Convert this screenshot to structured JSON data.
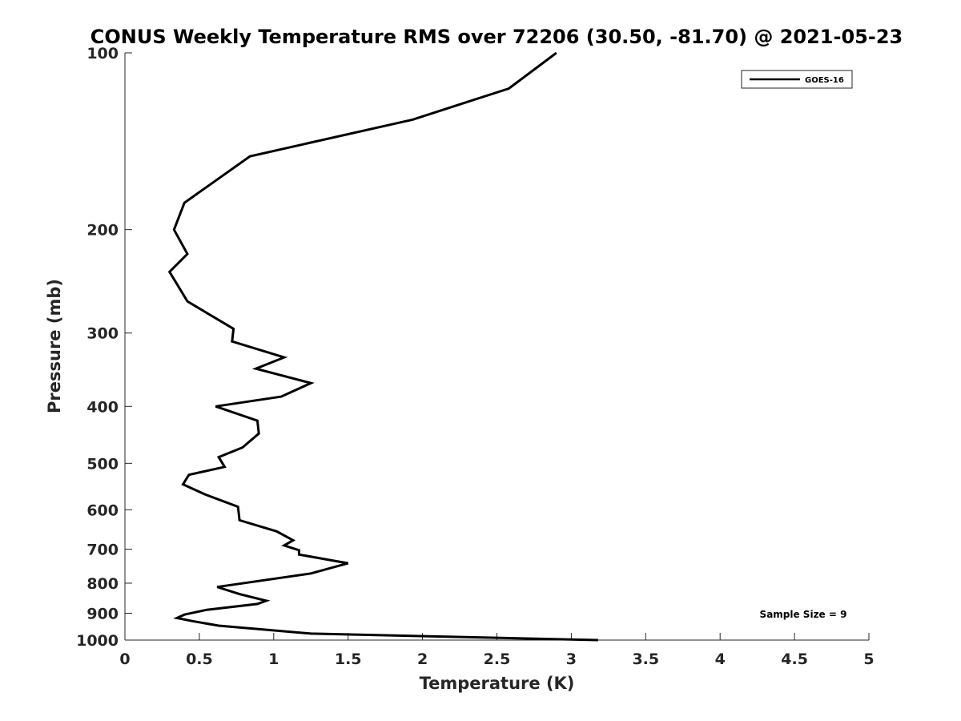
{
  "chart_data": {
    "type": "line",
    "title": "CONUS Weekly Temperature RMS over 72206 (30.50, -81.70) @ 2021-05-23",
    "xlabel": "Temperature (K)",
    "ylabel": "Pressure (mb)",
    "xlim": [
      0,
      5
    ],
    "ylim": [
      100,
      1000
    ],
    "yscale": "log",
    "yreversed": true,
    "grid": false,
    "legend_position": "top-right",
    "xticks": [
      "0",
      "0.5",
      "1",
      "1.5",
      "2",
      "2.5",
      "3",
      "3.5",
      "4",
      "4.5",
      "5"
    ],
    "yticks": [
      "100",
      "200",
      "300",
      "400",
      "500",
      "600",
      "700",
      "800",
      "900",
      "1000"
    ],
    "series": [
      {
        "name": "GOES-16",
        "color": "#000000",
        "x": [
          2.9,
          2.58,
          1.93,
          0.84,
          0.4,
          0.33,
          0.42,
          0.3,
          0.42,
          0.73,
          0.72,
          1.07,
          0.88,
          1.25,
          1.05,
          0.61,
          0.89,
          0.9,
          0.79,
          0.63,
          0.67,
          0.43,
          0.39,
          0.54,
          0.76,
          0.77,
          1.02,
          1.13,
          1.07,
          1.17,
          1.17,
          1.5,
          1.25,
          0.62,
          0.77,
          0.95,
          0.89,
          0.55,
          0.4,
          0.35,
          0.45,
          0.63,
          1.25,
          3.18
        ],
        "y": [
          100,
          115,
          130,
          150,
          180,
          200,
          220,
          236,
          265,
          295,
          310,
          330,
          345,
          365,
          385,
          400,
          423,
          445,
          470,
          488,
          507,
          523,
          543,
          565,
          593,
          625,
          653,
          676,
          690,
          703,
          715,
          740,
          770,
          812,
          835,
          857,
          868,
          888,
          905,
          917,
          928,
          945,
          975,
          1000
        ]
      }
    ],
    "annotations": [
      "Sample Size = 9"
    ]
  }
}
